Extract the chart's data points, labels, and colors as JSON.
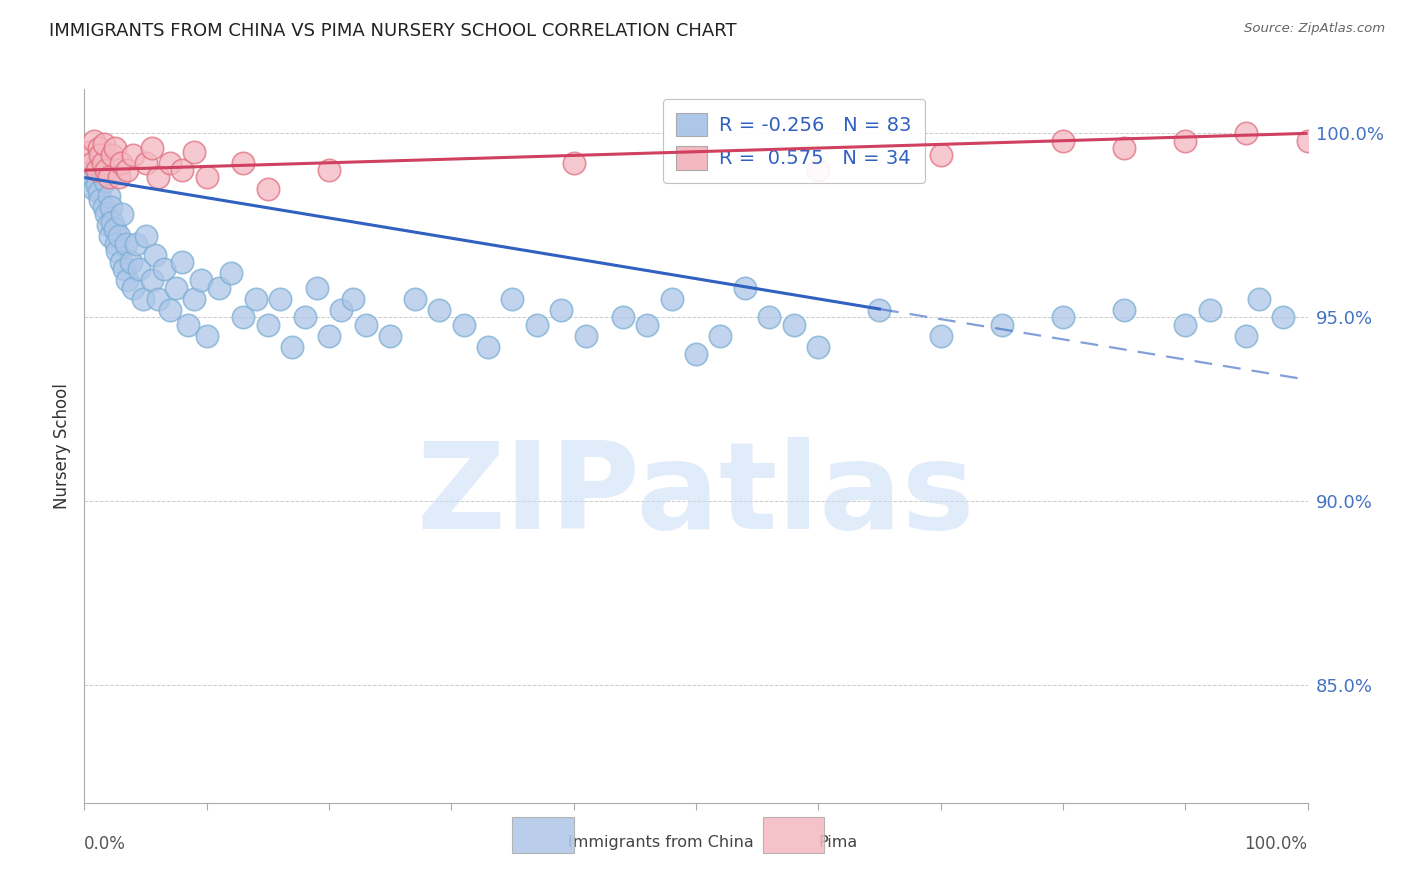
{
  "title": "IMMIGRANTS FROM CHINA VS PIMA NURSERY SCHOOL CORRELATION CHART",
  "source": "Source: ZipAtlas.com",
  "ylabel": "Nursery School",
  "R_blue": -0.256,
  "N_blue": 83,
  "R_pink": 0.575,
  "N_pink": 34,
  "blue_face": "#aec6e8",
  "blue_edge": "#7bafd4",
  "pink_face": "#f4b8c1",
  "pink_edge": "#e07080",
  "trend_blue": "#3060c0",
  "trend_pink": "#d04060",
  "watermark": "ZIPatlas",
  "watermark_color": "#c8ddf5",
  "bg": "#ffffff",
  "yticks": [
    0.85,
    0.9,
    0.95,
    1.0
  ],
  "ylim_lo": 0.818,
  "ylim_hi": 1.012,
  "xlim_lo": 0.0,
  "xlim_hi": 1.0,
  "legend1": "Immigrants from China",
  "legend2": "Pima",
  "blue_x": [
    0.005,
    0.007,
    0.008,
    0.01,
    0.01,
    0.012,
    0.013,
    0.015,
    0.016,
    0.017,
    0.018,
    0.019,
    0.02,
    0.021,
    0.022,
    0.023,
    0.025,
    0.026,
    0.027,
    0.028,
    0.03,
    0.031,
    0.032,
    0.034,
    0.035,
    0.038,
    0.04,
    0.042,
    0.045,
    0.048,
    0.05,
    0.055,
    0.058,
    0.06,
    0.065,
    0.07,
    0.075,
    0.08,
    0.085,
    0.09,
    0.095,
    0.1,
    0.11,
    0.12,
    0.13,
    0.14,
    0.15,
    0.16,
    0.17,
    0.18,
    0.19,
    0.2,
    0.21,
    0.22,
    0.23,
    0.25,
    0.27,
    0.29,
    0.31,
    0.33,
    0.35,
    0.37,
    0.39,
    0.41,
    0.44,
    0.46,
    0.48,
    0.5,
    0.52,
    0.54,
    0.56,
    0.58,
    0.6,
    0.65,
    0.7,
    0.75,
    0.8,
    0.85,
    0.9,
    0.92,
    0.95,
    0.96,
    0.98
  ],
  "blue_y": [
    0.99,
    0.988,
    0.985,
    0.992,
    0.986,
    0.984,
    0.982,
    0.989,
    0.98,
    0.987,
    0.978,
    0.975,
    0.983,
    0.972,
    0.98,
    0.976,
    0.974,
    0.97,
    0.968,
    0.972,
    0.965,
    0.978,
    0.963,
    0.97,
    0.96,
    0.965,
    0.958,
    0.97,
    0.963,
    0.955,
    0.972,
    0.96,
    0.967,
    0.955,
    0.963,
    0.952,
    0.958,
    0.965,
    0.948,
    0.955,
    0.96,
    0.945,
    0.958,
    0.962,
    0.95,
    0.955,
    0.948,
    0.955,
    0.942,
    0.95,
    0.958,
    0.945,
    0.952,
    0.955,
    0.948,
    0.945,
    0.955,
    0.952,
    0.948,
    0.942,
    0.955,
    0.948,
    0.952,
    0.945,
    0.95,
    0.948,
    0.955,
    0.94,
    0.945,
    0.958,
    0.95,
    0.948,
    0.942,
    0.952,
    0.945,
    0.948,
    0.95,
    0.952,
    0.948,
    0.952,
    0.945,
    0.955,
    0.95
  ],
  "pink_x": [
    0.004,
    0.006,
    0.008,
    0.01,
    0.012,
    0.013,
    0.015,
    0.016,
    0.018,
    0.02,
    0.023,
    0.025,
    0.028,
    0.03,
    0.035,
    0.04,
    0.05,
    0.055,
    0.06,
    0.07,
    0.08,
    0.09,
    0.1,
    0.13,
    0.15,
    0.2,
    0.4,
    0.6,
    0.7,
    0.8,
    0.85,
    0.9,
    0.95,
    1.0
  ],
  "pink_y": [
    0.995,
    0.992,
    0.998,
    0.99,
    0.996,
    0.994,
    0.992,
    0.997,
    0.99,
    0.988,
    0.994,
    0.996,
    0.988,
    0.992,
    0.99,
    0.994,
    0.992,
    0.996,
    0.988,
    0.992,
    0.99,
    0.995,
    0.988,
    0.992,
    0.985,
    0.99,
    0.992,
    0.99,
    0.994,
    0.998,
    0.996,
    0.998,
    1.0,
    0.998
  ]
}
